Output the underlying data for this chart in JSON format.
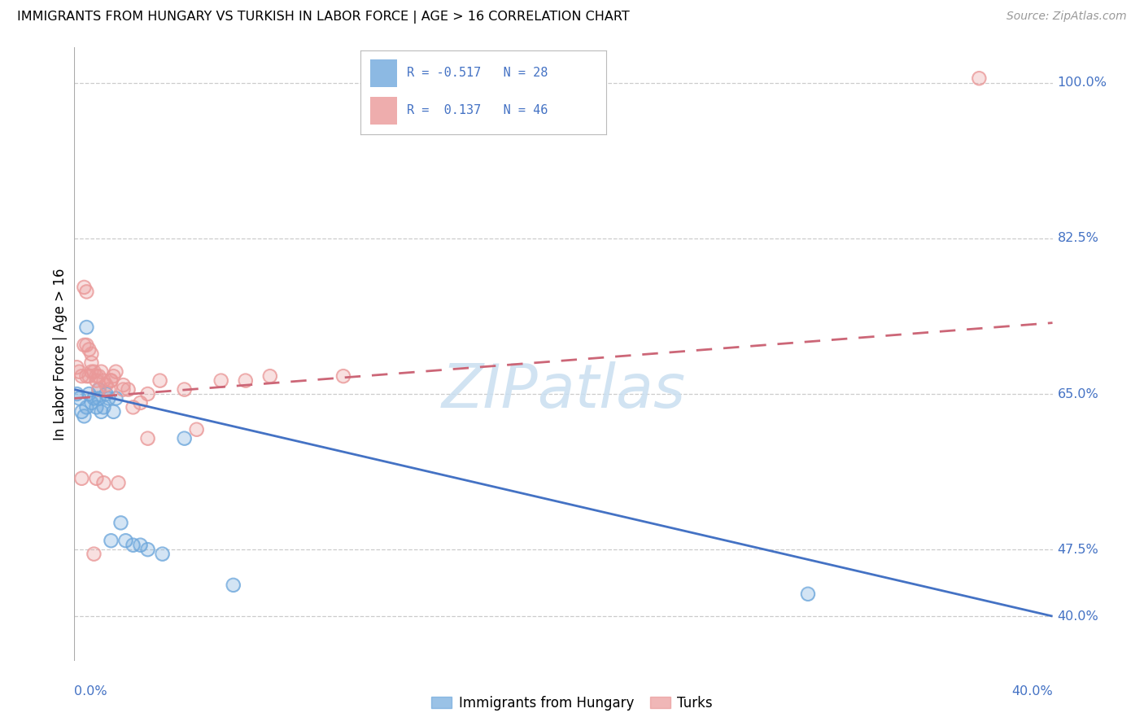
{
  "title": "IMMIGRANTS FROM HUNGARY VS TURKISH IN LABOR FORCE | AGE > 16 CORRELATION CHART",
  "source": "Source: ZipAtlas.com",
  "ylabel": "In Labor Force | Age > 16",
  "y_ticks": [
    40.0,
    47.5,
    65.0,
    82.5,
    100.0
  ],
  "y_tick_labels": [
    "40.0%",
    "47.5%",
    "65.0%",
    "82.5%",
    "100.0%"
  ],
  "xmin": 0.0,
  "xmax": 40.0,
  "ymin": 35.0,
  "ymax": 104.0,
  "hungary_R": -0.517,
  "hungary_N": 28,
  "turks_R": 0.137,
  "turks_N": 46,
  "hungary_color": "#6fa8dc",
  "turks_color": "#ea9999",
  "hungary_line_color": "#4472c4",
  "turks_line_color": "#cc6677",
  "legend_label_hungary": "Immigrants from Hungary",
  "legend_label_turks": "Turks",
  "hungary_line_y0": 65.5,
  "hungary_line_y1": 40.0,
  "turks_line_y0": 64.5,
  "turks_line_y1": 73.0,
  "hungary_x": [
    0.1,
    0.2,
    0.3,
    0.4,
    0.5,
    0.6,
    0.7,
    0.8,
    0.9,
    1.0,
    1.1,
    1.2,
    1.3,
    1.4,
    1.6,
    1.7,
    1.9,
    2.1,
    2.4,
    2.7,
    3.0,
    3.6,
    4.5,
    6.5,
    0.5,
    1.0,
    1.5,
    30.0
  ],
  "hungary_y": [
    65.0,
    64.5,
    63.0,
    62.5,
    72.5,
    65.0,
    64.0,
    64.5,
    63.5,
    64.5,
    63.0,
    63.5,
    65.0,
    64.5,
    63.0,
    64.5,
    50.5,
    48.5,
    48.0,
    48.0,
    47.5,
    47.0,
    60.0,
    43.5,
    63.5,
    65.5,
    48.5,
    42.5
  ],
  "turks_x": [
    0.1,
    0.2,
    0.3,
    0.4,
    0.5,
    0.5,
    0.6,
    0.7,
    0.7,
    0.8,
    0.9,
    0.9,
    1.0,
    1.1,
    1.2,
    1.3,
    1.4,
    1.5,
    1.6,
    1.7,
    1.8,
    2.0,
    2.0,
    2.2,
    2.4,
    2.7,
    3.0,
    3.5,
    4.5,
    5.0,
    6.0,
    7.0,
    8.0,
    0.3,
    0.4,
    0.5,
    0.6,
    0.7,
    0.8,
    0.9,
    1.0,
    1.2,
    1.5,
    3.0,
    11.0,
    37.0
  ],
  "turks_y": [
    68.0,
    67.5,
    55.5,
    70.5,
    70.5,
    76.5,
    70.0,
    69.5,
    68.5,
    67.5,
    66.5,
    67.0,
    67.0,
    67.5,
    66.5,
    66.0,
    65.5,
    66.5,
    67.0,
    67.5,
    55.0,
    65.5,
    66.0,
    65.5,
    63.5,
    64.0,
    65.0,
    66.5,
    65.5,
    61.0,
    66.5,
    66.5,
    67.0,
    67.0,
    77.0,
    67.0,
    67.0,
    67.5,
    47.0,
    55.5,
    65.5,
    55.0,
    66.5,
    60.0,
    67.0,
    100.5
  ]
}
